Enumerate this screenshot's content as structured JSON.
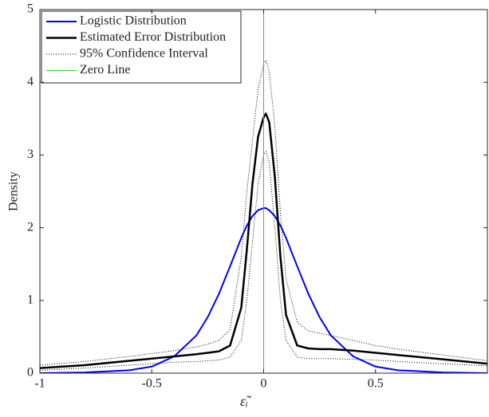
{
  "chart_data": {
    "type": "line",
    "xlabel": "ε̃ᵢ",
    "ylabel": "Density",
    "xlim": [
      -1,
      1
    ],
    "ylim": [
      0,
      5
    ],
    "xticks": [
      -1,
      -0.5,
      0,
      0.5
    ],
    "yticks": [
      0,
      1,
      2,
      3,
      4,
      5
    ],
    "legend": "upper-left",
    "x": [
      -1,
      -0.8,
      -0.6,
      -0.5,
      -0.4,
      -0.3,
      -0.25,
      -0.2,
      -0.15,
      -0.1,
      -0.075,
      -0.05,
      -0.025,
      0,
      0.01,
      0.025,
      0.05,
      0.075,
      0.1,
      0.15,
      0.2,
      0.25,
      0.3,
      0.4,
      0.5,
      0.6,
      0.8,
      1
    ],
    "series": [
      {
        "name": "Logistic Distribution",
        "color": "#0000ff",
        "width": 2,
        "dash": "none",
        "values": [
          0,
          0.01,
          0.04,
          0.09,
          0.23,
          0.52,
          0.77,
          1.09,
          1.47,
          1.86,
          2.03,
          2.16,
          2.24,
          2.27,
          2.27,
          2.24,
          2.16,
          2.03,
          1.86,
          1.47,
          1.09,
          0.77,
          0.52,
          0.23,
          0.09,
          0.04,
          0.01,
          0
        ]
      },
      {
        "name": "Estimated Error Distribution",
        "color": "#000000",
        "width": 2.5,
        "dash": "none",
        "values": [
          0.07,
          0.11,
          0.17,
          0.2,
          0.23,
          0.26,
          0.28,
          0.3,
          0.38,
          0.9,
          1.7,
          2.6,
          3.25,
          3.52,
          3.57,
          3.45,
          2.7,
          1.6,
          0.8,
          0.38,
          0.34,
          0.33,
          0.33,
          0.31,
          0.28,
          0.25,
          0.19,
          0.13
        ]
      },
      {
        "name": "95% Confidence Interval",
        "color": "#000000",
        "width": 1,
        "dash": "1 2",
        "values": [
          0.11,
          0.16,
          0.23,
          0.27,
          0.31,
          0.36,
          0.4,
          0.45,
          0.6,
          1.6,
          2.5,
          3.2,
          3.9,
          4.25,
          4.3,
          4.15,
          3.4,
          2.2,
          1.3,
          0.7,
          0.58,
          0.55,
          0.52,
          0.45,
          0.38,
          0.33,
          0.25,
          0.17
        ]
      },
      {
        "color": "#000000",
        "width": 1,
        "dash": "1 2",
        "values": [
          0.04,
          0.07,
          0.11,
          0.13,
          0.15,
          0.16,
          0.17,
          0.18,
          0.22,
          0.45,
          1.0,
          1.8,
          2.6,
          3.0,
          3.05,
          2.9,
          2.0,
          1.0,
          0.45,
          0.22,
          0.2,
          0.2,
          0.2,
          0.19,
          0.18,
          0.16,
          0.13,
          0.1
        ]
      },
      {
        "name": "Zero Line",
        "color": "#33cc33",
        "width": 1,
        "dash": "none",
        "x": [
          0,
          0
        ],
        "values": [
          0,
          5
        ]
      }
    ]
  }
}
